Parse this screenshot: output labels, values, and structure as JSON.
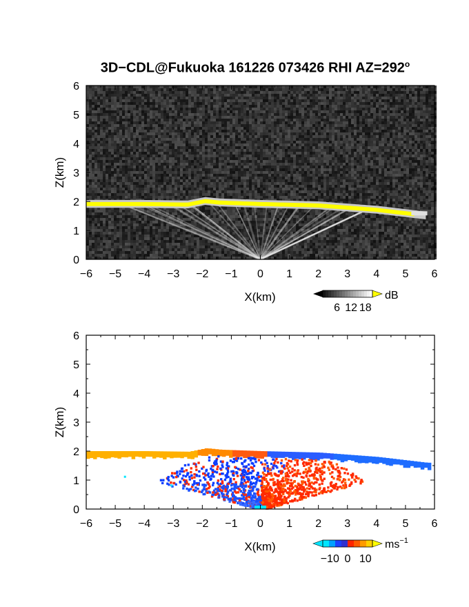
{
  "title": "3D−CDL@Fukuoka 161226 073426 RHI AZ=292",
  "title_sup": "o",
  "chart_data": [
    {
      "type": "heatmap",
      "panel": "backscatter",
      "xlabel": "X(km)",
      "ylabel": "Z(km)",
      "xlim": [
        -6,
        6
      ],
      "ylim": [
        0,
        6
      ],
      "xticks": [
        "−6",
        "−5",
        "−4",
        "−3",
        "−2",
        "−1",
        "0",
        "1",
        "2",
        "3",
        "4",
        "5",
        "6"
      ],
      "yticks": [
        "0",
        "1",
        "2",
        "3",
        "4",
        "5",
        "6"
      ],
      "colorbar": {
        "unit": "dB",
        "ticks": [
          "6",
          "12",
          "18"
        ],
        "range": [
          0,
          21
        ]
      },
      "cloud_layer_top_km": [
        {
          "x": -6,
          "z": 2.0
        },
        {
          "x": -4,
          "z": 2.0
        },
        {
          "x": -2.5,
          "z": 1.98
        },
        {
          "x": -1.9,
          "z": 2.1
        },
        {
          "x": -1.4,
          "z": 2.05
        },
        {
          "x": 0,
          "z": 2.0
        },
        {
          "x": 2,
          "z": 1.95
        },
        {
          "x": 4,
          "z": 1.8
        },
        {
          "x": 5.7,
          "z": 1.6
        }
      ]
    },
    {
      "type": "heatmap",
      "panel": "radial_velocity",
      "xlabel": "X(km)",
      "ylabel": "Z(km)",
      "xlim": [
        -6,
        6
      ],
      "ylim": [
        0,
        6
      ],
      "xticks": [
        "−6",
        "−5",
        "−4",
        "−3",
        "−2",
        "−1",
        "0",
        "1",
        "2",
        "3",
        "4",
        "5",
        "6"
      ],
      "yticks": [
        "0",
        "1",
        "2",
        "3",
        "4",
        "5",
        "6"
      ],
      "colorbar": {
        "unit": "ms",
        "unit_sup": "−1",
        "ticks": [
          "−10",
          "0",
          "10"
        ],
        "range": [
          -14,
          14
        ]
      },
      "notes": "Positive velocities (orange/red) on the left half of the layer and in the lower-right cone; negative velocities (blue) on the right half of the layer and the lower-left cone."
    }
  ],
  "colors": {
    "yellow": "#ffff00",
    "orange": "#ff9a00",
    "red": "#ff2400",
    "blue": "#0a3cff",
    "cyan": "#00e5ff"
  }
}
